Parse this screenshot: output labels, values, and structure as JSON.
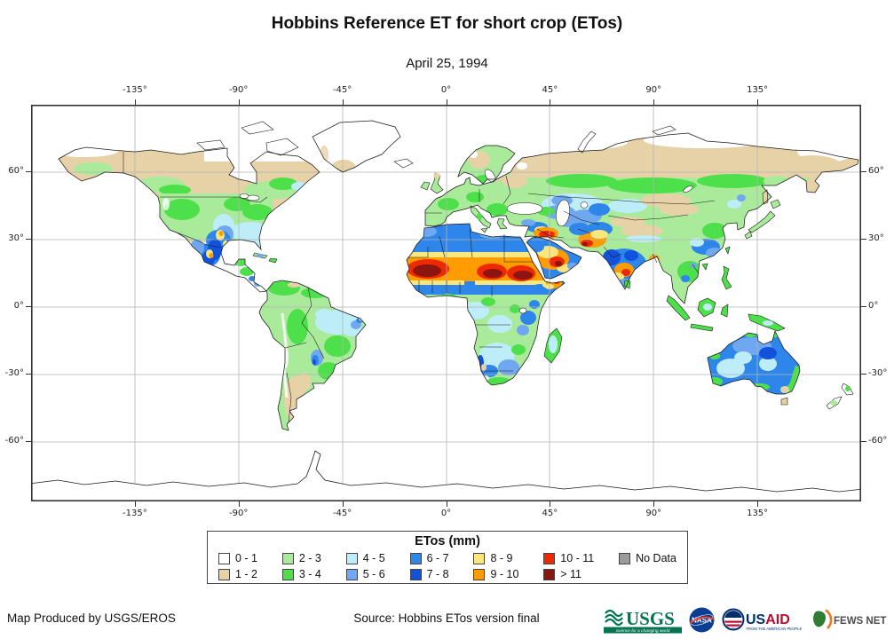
{
  "title": "Hobbins Reference ET for short crop (ETos)",
  "subtitle": "April 25, 1994",
  "map": {
    "lon_ticks": [
      {
        "label": "-135°",
        "deg": -135
      },
      {
        "label": "-90°",
        "deg": -90
      },
      {
        "label": "-45°",
        "deg": -45
      },
      {
        "label": "0°",
        "deg": 0
      },
      {
        "label": "45°",
        "deg": 45
      },
      {
        "label": "90°",
        "deg": 90
      },
      {
        "label": "135°",
        "deg": 135
      }
    ],
    "lat_ticks": [
      {
        "label": "60°",
        "deg": 60
      },
      {
        "label": "30°",
        "deg": 30
      },
      {
        "label": "0°",
        "deg": 0
      },
      {
        "label": "-30°",
        "deg": -30
      },
      {
        "label": "-60°",
        "deg": -60
      }
    ]
  },
  "legend": {
    "title": "ETos (mm)",
    "items": [
      {
        "label": "0 - 1",
        "color": "#ffffff"
      },
      {
        "label": "1 - 2",
        "color": "#e7d2a8"
      },
      {
        "label": "2 - 3",
        "color": "#a9ea9b"
      },
      {
        "label": "3 - 4",
        "color": "#4ee04b"
      },
      {
        "label": "4 - 5",
        "color": "#bdedf8"
      },
      {
        "label": "5 - 6",
        "color": "#6fa8f0"
      },
      {
        "label": "6 - 7",
        "color": "#2e86ea"
      },
      {
        "label": "7 - 8",
        "color": "#1251dc"
      },
      {
        "label": "8 - 9",
        "color": "#f9e77e"
      },
      {
        "label": "9 - 10",
        "color": "#ff9c00"
      },
      {
        "label": "10 - 11",
        "color": "#ee2800"
      },
      {
        "label": "> 11",
        "color": "#8c1511"
      },
      {
        "label": "No Data",
        "color": "#9c9c9c"
      }
    ]
  },
  "footer": {
    "produced_by": "Map Produced by USGS/EROS",
    "source": "Source: Hobbins ETos version final",
    "logos": {
      "usgs": {
        "text": "USGS",
        "tagline": "science for a changing world"
      },
      "nasa": {
        "text": "NASA"
      },
      "usaid": {
        "us": "US",
        "aid": "AID",
        "tagline": "FROM THE AMERICAN PEOPLE"
      },
      "fewsnet": {
        "text": "FEWS NET"
      }
    }
  }
}
